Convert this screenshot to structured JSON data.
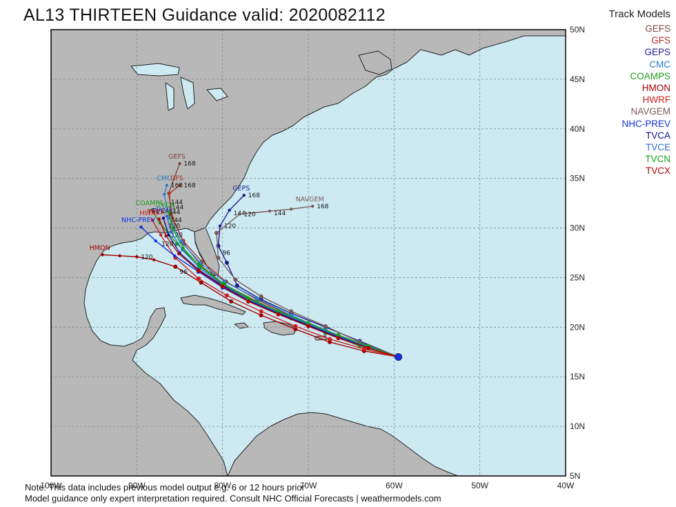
{
  "title": "AL13 THIRTEEN Guidance valid: 2020082112",
  "legend": {
    "heading": "Track Models",
    "models": [
      {
        "name": "GEFS",
        "color": "#7a4a3a"
      },
      {
        "name": "GFS",
        "color": "#b03020"
      },
      {
        "name": "GEPS",
        "color": "#1c1c8c"
      },
      {
        "name": "CMC",
        "color": "#2a7fd0"
      },
      {
        "name": "COAMPS",
        "color": "#1a9a1a"
      },
      {
        "name": "HMON",
        "color": "#a00000"
      },
      {
        "name": "HWRF",
        "color": "#cc2020"
      },
      {
        "name": "NAVGEM",
        "color": "#7a5a5a"
      },
      {
        "name": "NHC-PREV",
        "color": "#1030e0"
      },
      {
        "name": "TVCA",
        "color": "#10108a"
      },
      {
        "name": "TVCE",
        "color": "#2a6ad0"
      },
      {
        "name": "TVCN",
        "color": "#18a018"
      },
      {
        "name": "TVCX",
        "color": "#b00000"
      }
    ]
  },
  "axes": {
    "lon_ticks": [
      "100W",
      "90W",
      "80W",
      "70W",
      "60W",
      "50W",
      "40W"
    ],
    "lat_ticks": [
      "50N",
      "45N",
      "40N",
      "35N",
      "30N",
      "25N",
      "20N",
      "15N",
      "10N",
      "5N"
    ]
  },
  "tracks": [
    {
      "name": "GEFS",
      "pts": [
        [
          -59.5,
          17
        ],
        [
          -64,
          18.2
        ],
        [
          -68,
          19.5
        ],
        [
          -72,
          21
        ],
        [
          -76,
          22.6
        ],
        [
          -79.8,
          24.3
        ],
        [
          -82.5,
          26.2
        ],
        [
          -84.5,
          28.4
        ],
        [
          -85.8,
          31
        ],
        [
          -86.3,
          33.5
        ],
        [
          -85,
          36.5
        ]
      ],
      "labels": {
        "168": [
          -85,
          36.5
        ]
      }
    },
    {
      "name": "GFS",
      "pts": [
        [
          -59.5,
          17
        ],
        [
          -64,
          18.3
        ],
        [
          -68,
          19.6
        ],
        [
          -72,
          21.1
        ],
        [
          -76,
          22.8
        ],
        [
          -79.6,
          24.6
        ],
        [
          -82.4,
          26.6
        ],
        [
          -84.6,
          28.7
        ],
        [
          -86,
          31.3
        ],
        [
          -86.2,
          33.5
        ],
        [
          -85,
          34.3
        ]
      ],
      "labels": {
        "168": [
          -85,
          34.3
        ]
      }
    },
    {
      "name": "GEPS",
      "pts": [
        [
          -59.5,
          17
        ],
        [
          -64,
          18.6
        ],
        [
          -68,
          20
        ],
        [
          -72,
          21.4
        ],
        [
          -75.5,
          22.8
        ],
        [
          -78.3,
          24.2
        ],
        [
          -79.5,
          26.5
        ],
        [
          -80.5,
          28.2
        ],
        [
          -80.3,
          30.2
        ],
        [
          -79.2,
          31.8
        ],
        [
          -77.5,
          33.3
        ]
      ],
      "labels": {
        "168": [
          -77.5,
          33.3
        ],
        "144": [
          -79.2,
          31.5
        ],
        "120": [
          -80.3,
          30.2
        ],
        "96": [
          -80.5,
          27.5
        ]
      }
    },
    {
      "name": "CMC",
      "pts": [
        [
          -59.5,
          17
        ],
        [
          -64,
          18.3
        ],
        [
          -68,
          19.7
        ],
        [
          -72,
          21.2
        ],
        [
          -76,
          22.9
        ],
        [
          -79.8,
          24.6
        ],
        [
          -82.6,
          26.5
        ],
        [
          -84.8,
          28.6
        ],
        [
          -86.2,
          31
        ],
        [
          -86.8,
          33.4
        ],
        [
          -86.5,
          34.3
        ]
      ],
      "labels": {
        "168": [
          -86.5,
          34.3
        ],
        "144": [
          -86.5,
          32.6
        ]
      }
    },
    {
      "name": "COAMPS",
      "pts": [
        [
          -59.5,
          17
        ],
        [
          -64,
          18.1
        ],
        [
          -68,
          19.4
        ],
        [
          -72,
          20.9
        ],
        [
          -76,
          22.5
        ],
        [
          -79.8,
          24.3
        ],
        [
          -82.8,
          26.3
        ],
        [
          -85.3,
          28.4
        ],
        [
          -87.3,
          30.5
        ],
        [
          -88.2,
          31.8
        ]
      ],
      "labels": {
        "120": [
          -86.8,
          30.2
        ]
      }
    },
    {
      "name": "HMON",
      "pts": [
        [
          -59.5,
          17
        ],
        [
          -63.5,
          17.6
        ],
        [
          -67.5,
          18.5
        ],
        [
          -71.5,
          19.8
        ],
        [
          -75.5,
          21.2
        ],
        [
          -79,
          22.6
        ],
        [
          -82.5,
          24.5
        ],
        [
          -85.5,
          26.1
        ],
        [
          -88,
          26.8
        ],
        [
          -90,
          27.1
        ],
        [
          -92,
          27.2
        ],
        [
          -94,
          27.3
        ]
      ],
      "labels": {
        "120": [
          -90,
          27.1
        ],
        "96": [
          -85.5,
          25.6
        ]
      }
    },
    {
      "name": "HWRF",
      "pts": [
        [
          -59.5,
          17
        ],
        [
          -63.5,
          17.8
        ],
        [
          -67.5,
          18.8
        ],
        [
          -71.5,
          20.1
        ],
        [
          -75.5,
          21.6
        ],
        [
          -79.5,
          23.2
        ],
        [
          -82.8,
          24.9
        ],
        [
          -85.5,
          27
        ],
        [
          -87.2,
          29.3
        ],
        [
          -88.2,
          30.8
        ]
      ],
      "labels": {
        "120": [
          -86.5,
          29.3
        ]
      }
    },
    {
      "name": "NAVGEM",
      "pts": [
        [
          -59.5,
          17
        ],
        [
          -64,
          18.5
        ],
        [
          -68,
          20.1
        ],
        [
          -72,
          21.6
        ],
        [
          -75.5,
          23.1
        ],
        [
          -78.5,
          24.8
        ],
        [
          -80.5,
          27
        ],
        [
          -80.7,
          29.5
        ],
        [
          -78,
          31.4
        ],
        [
          -74.5,
          31.7
        ],
        [
          -72,
          31.9
        ],
        [
          -69.5,
          32.2
        ]
      ],
      "labels": {
        "168": [
          -69.5,
          32.2
        ],
        "144": [
          -74.5,
          31.5
        ],
        "120": [
          -78,
          31.4
        ]
      }
    },
    {
      "name": "NHC-PREV",
      "pts": [
        [
          -59.5,
          17
        ],
        [
          -63,
          18
        ],
        [
          -66.5,
          18.9
        ],
        [
          -70,
          20.1
        ],
        [
          -73.5,
          21.3
        ],
        [
          -77,
          22.6
        ],
        [
          -80,
          24
        ],
        [
          -82.8,
          25.6
        ],
        [
          -85.6,
          27.2
        ],
        [
          -87.8,
          28.7
        ],
        [
          -89.5,
          30.1
        ]
      ],
      "labels": {
        "120": [
          -87.6,
          28.4
        ]
      }
    },
    {
      "name": "TVCA",
      "pts": [
        [
          -59.5,
          17
        ],
        [
          -63,
          18
        ],
        [
          -66.5,
          19
        ],
        [
          -70,
          20.2
        ],
        [
          -73.5,
          21.4
        ],
        [
          -77,
          22.7
        ],
        [
          -80,
          24.2
        ],
        [
          -82.8,
          25.8
        ],
        [
          -85,
          27.5
        ],
        [
          -86.3,
          29.3
        ],
        [
          -86.9,
          31
        ]
      ],
      "labels": {
        "144": [
          -86.6,
          30.8
        ]
      }
    },
    {
      "name": "TVCE",
      "pts": [
        [
          -59.5,
          17
        ],
        [
          -63,
          18
        ],
        [
          -66.5,
          19.1
        ],
        [
          -70,
          20.3
        ],
        [
          -73.5,
          21.5
        ],
        [
          -77,
          22.8
        ],
        [
          -80,
          24.3
        ],
        [
          -82.7,
          26
        ],
        [
          -84.7,
          27.8
        ],
        [
          -86,
          29.6
        ],
        [
          -86.5,
          31.2
        ]
      ],
      "labels": {
        "144": [
          -86.8,
          31.6
        ]
      }
    },
    {
      "name": "TVCN",
      "pts": [
        [
          -59.5,
          17
        ],
        [
          -63,
          18.1
        ],
        [
          -66.5,
          19.2
        ],
        [
          -70,
          20.4
        ],
        [
          -73.5,
          21.6
        ],
        [
          -77,
          22.9
        ],
        [
          -80,
          24.4
        ],
        [
          -82.6,
          26.1
        ],
        [
          -84.6,
          28
        ],
        [
          -85.8,
          29.9
        ],
        [
          -86.3,
          31.6
        ]
      ],
      "labels": {
        "144": [
          -86.4,
          32.1
        ]
      }
    },
    {
      "name": "TVCX",
      "pts": [
        [
          -59.5,
          17
        ],
        [
          -63,
          17.9
        ],
        [
          -66.5,
          18.9
        ],
        [
          -70,
          20.1
        ],
        [
          -73.5,
          21.3
        ],
        [
          -77,
          22.6
        ],
        [
          -80,
          24.1
        ],
        [
          -82.8,
          25.7
        ],
        [
          -85.1,
          27.4
        ],
        [
          -86.6,
          29.2
        ],
        [
          -87.4,
          30.9
        ]
      ],
      "labels": {}
    }
  ],
  "notes": {
    "line1": "Note: This data includes previous model output e.g. 6 or 12 hours prior",
    "line2": "Model guidance only expert interpretation required. Consult NHC Official Forecasts | weathermodels.com"
  }
}
